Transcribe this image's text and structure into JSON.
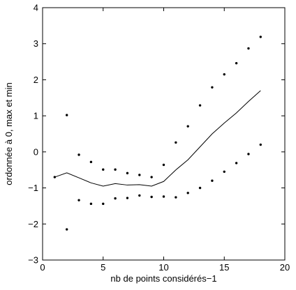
{
  "chart_data": {
    "type": "line",
    "title": "",
    "xlabel": "nb de points considérés−1",
    "ylabel": "ordonnée à 0, max et min",
    "xlim": [
      0,
      20
    ],
    "ylim": [
      -3,
      4
    ],
    "xticks": [
      0,
      5,
      10,
      15,
      20
    ],
    "yticks": [
      -3,
      -2,
      -1,
      0,
      1,
      2,
      3,
      4
    ],
    "xtick_labels": [
      "0",
      "5",
      "10",
      "15",
      "20"
    ],
    "ytick_labels": [
      "−3",
      "−2",
      "−1",
      "0",
      "1",
      "2",
      "3",
      "4"
    ],
    "grid": false,
    "legend": "none",
    "series": [
      {
        "style": "solid-line",
        "color": "#000000",
        "points": [
          [
            1,
            -0.7
          ],
          [
            2,
            -0.58
          ],
          [
            3,
            -0.72
          ],
          [
            4,
            -0.86
          ],
          [
            5,
            -0.95
          ],
          [
            6,
            -0.88
          ],
          [
            7,
            -0.92
          ],
          [
            8,
            -0.91
          ],
          [
            9,
            -0.95
          ],
          [
            10,
            -0.82
          ],
          [
            11,
            -0.5
          ],
          [
            12,
            -0.22
          ],
          [
            13,
            0.14
          ],
          [
            14,
            0.5
          ],
          [
            15,
            0.8
          ],
          [
            16,
            1.08
          ],
          [
            17,
            1.4
          ],
          [
            18,
            1.7
          ]
        ]
      },
      {
        "style": "dots",
        "color": "#000000",
        "points": [
          [
            1,
            -0.7
          ],
          [
            2,
            1.02
          ],
          [
            3,
            -0.08
          ],
          [
            4,
            -0.28
          ],
          [
            5,
            -0.49
          ],
          [
            6,
            -0.49
          ],
          [
            7,
            -0.59
          ],
          [
            8,
            -0.64
          ],
          [
            9,
            -0.7
          ],
          [
            10,
            -0.36
          ],
          [
            11,
            0.26
          ],
          [
            12,
            0.71
          ],
          [
            13,
            1.29
          ],
          [
            14,
            1.79
          ],
          [
            15,
            2.15
          ],
          [
            16,
            2.46
          ],
          [
            17,
            2.87
          ],
          [
            18,
            3.19
          ]
        ]
      },
      {
        "style": "dots",
        "color": "#000000",
        "points": [
          [
            2,
            -2.15
          ],
          [
            3,
            -1.34
          ],
          [
            4,
            -1.44
          ],
          [
            5,
            -1.44
          ],
          [
            6,
            -1.29
          ],
          [
            7,
            -1.28
          ],
          [
            8,
            -1.21
          ],
          [
            9,
            -1.25
          ],
          [
            10,
            -1.24
          ],
          [
            11,
            -1.26
          ],
          [
            12,
            -1.14
          ],
          [
            13,
            -1.0
          ],
          [
            14,
            -0.8
          ],
          [
            15,
            -0.55
          ],
          [
            16,
            -0.31
          ],
          [
            17,
            -0.06
          ],
          [
            18,
            0.2
          ]
        ]
      }
    ]
  }
}
